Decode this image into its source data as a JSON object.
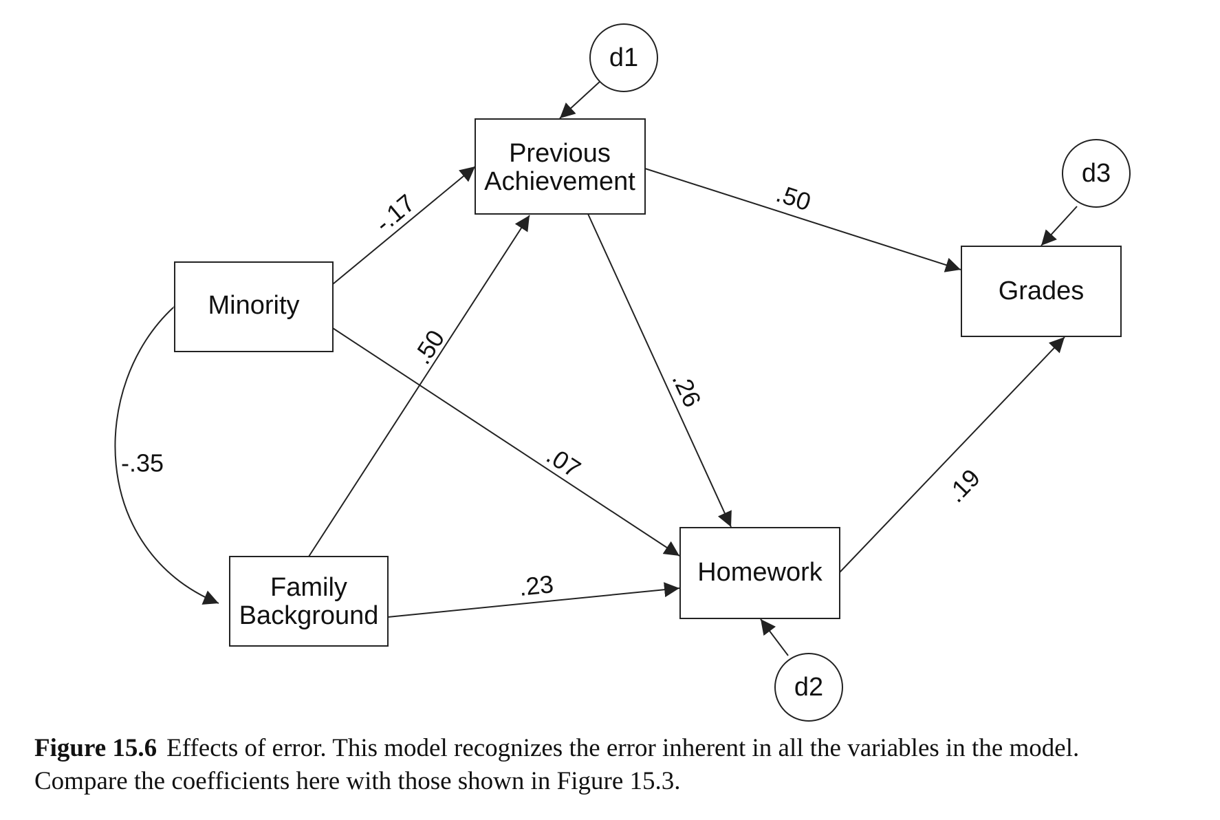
{
  "nodes": {
    "minority": "Minority",
    "family_background": [
      "Family",
      "Background"
    ],
    "previous_achievement": [
      "Previous",
      "Achievement"
    ],
    "homework": "Homework",
    "grades": "Grades",
    "d1": "d1",
    "d2": "d2",
    "d3": "d3"
  },
  "coefficients": {
    "minority_to_previous_achievement": "-.17",
    "family_background_to_previous_achievement": ".50",
    "previous_achievement_to_grades": ".50",
    "previous_achievement_to_homework": ".26",
    "minority_to_homework": ".07",
    "family_background_to_homework": ".23",
    "homework_to_grades": ".19",
    "minority_family_background_correlation": "-.35"
  },
  "caption": {
    "label": "Figure 15.6",
    "line1": "Effects of error. This model recognizes the error inherent in all the variables in the model.",
    "line2": "Compare the coefficients here with those shown in Figure 15.3."
  }
}
